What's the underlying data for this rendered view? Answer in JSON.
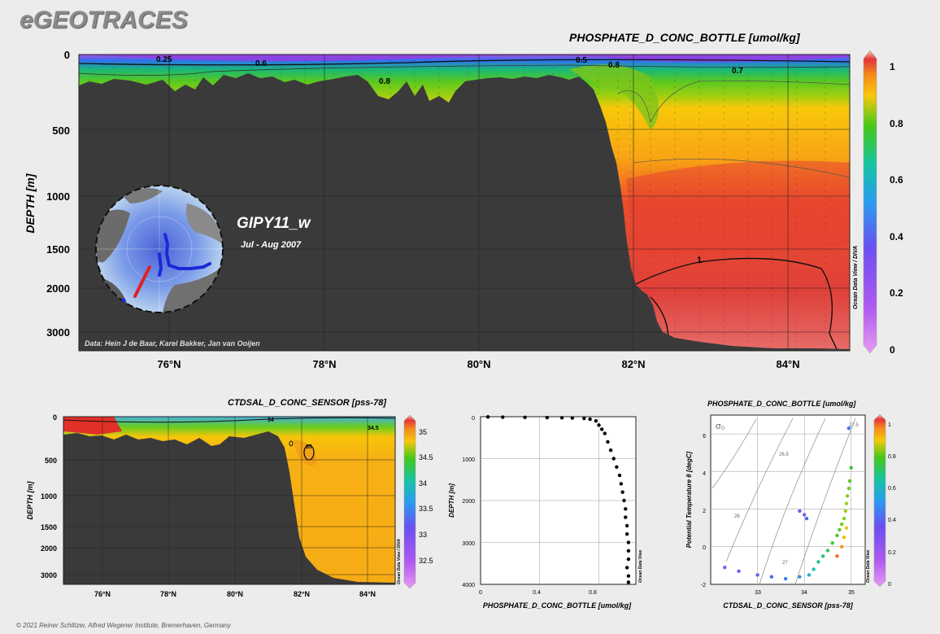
{
  "brand": "eGEOTRACES",
  "footer": "© 2021 Reiner Schlitzer, Alfred Wegener Institute, Bremerhaven, Germany",
  "colors": {
    "land": "#3a3a3a",
    "page_bg": "#ececec",
    "track_red": "#e02020",
    "track_blue": "#1a2ad6"
  },
  "chart_data": [
    {
      "type": "heatmap",
      "title": "PHOSPHATE_D_CONC_BOTTLE [umol/kg]",
      "ylabel": "DEPTH [m]",
      "y_ticks": [
        "0",
        "500",
        "1000",
        "1500",
        "2000",
        "3000"
      ],
      "x_ticks": [
        "76°N",
        "78°N",
        "80°N",
        "82°N",
        "84°N"
      ],
      "xlim": [
        74.8,
        84.8
      ],
      "ylim": [
        3400,
        0
      ],
      "colorbar_ticks": [
        "1",
        "0.8",
        "0.6",
        "0.4",
        "0.2",
        "0"
      ],
      "colorbar_range": [
        0,
        1.05
      ],
      "contour_labels": [
        "0.25",
        "0.6",
        "0.5",
        "0.8",
        "0.7",
        "0.8",
        "1"
      ],
      "cruise": "GIPY11_w",
      "period": "Jul - Aug 2007",
      "credit": "Data: Hein J de Baar, Karel Bakker, Jan van Ooijen",
      "side_label": "Ocean Data View / DIVA"
    },
    {
      "type": "heatmap",
      "title": "CTDSAL_D_CONC_SENSOR [pss-78]",
      "ylabel": "DEPTH [m]",
      "y_ticks": [
        "0",
        "500",
        "1000",
        "1500",
        "2000",
        "3000"
      ],
      "x_ticks": [
        "76°N",
        "78°N",
        "80°N",
        "82°N",
        "84°N"
      ],
      "xlim": [
        74.8,
        84.8
      ],
      "colorbar_ticks": [
        "35",
        "34.5",
        "34",
        "33.5",
        "33",
        "32.5"
      ],
      "colorbar_range": [
        32.2,
        35.3
      ],
      "contour_labels": [
        "34",
        "34.5",
        "35"
      ],
      "side_label": "Ocean Data View / DIVA"
    },
    {
      "type": "scatter",
      "xlabel": "PHOSPHATE_D_CONC_BOTTLE [umol/kg]",
      "ylabel": "DEPTH [m]",
      "xlim": [
        0,
        1.05
      ],
      "ylim": [
        4000,
        0
      ],
      "x_ticks": [
        "0",
        "0.4",
        "0.8"
      ],
      "y_ticks": [
        "0",
        "1000",
        "2000",
        "3000",
        "4000"
      ],
      "side_label": "Ocean Data View",
      "series": [
        {
          "x": [
            0.05,
            0.15,
            0.3,
            0.45,
            0.55,
            0.62,
            0.7,
            0.74,
            0.78,
            0.8,
            0.82,
            0.84,
            0.86,
            0.88,
            0.9,
            0.92,
            0.94,
            0.95,
            0.96,
            0.97,
            0.98,
            0.98,
            0.99,
            0.99,
            1.0,
            1.0,
            1.0,
            0.99,
            1.0,
            1.0
          ],
          "y": [
            5,
            10,
            15,
            20,
            25,
            30,
            40,
            60,
            100,
            200,
            300,
            400,
            600,
            800,
            1000,
            1200,
            1400,
            1600,
            1800,
            2000,
            2200,
            2400,
            2600,
            2800,
            3000,
            3200,
            3400,
            3600,
            3800,
            3950
          ]
        }
      ]
    },
    {
      "type": "scatter",
      "title": "PHOSPHATE_D_CONC_BOTTLE [umol/kg]",
      "xlabel": "CTDSAL_D_CONC_SENSOR [pss-78]",
      "ylabel": "Potential Temperature θ [degC]",
      "xlim": [
        32.0,
        35.3
      ],
      "ylim": [
        -2,
        7
      ],
      "x_ticks": [
        "33",
        "34",
        "35"
      ],
      "y_ticks": [
        "-2",
        "0",
        "2",
        "4",
        "6"
      ],
      "isopycnal_symbol": "σ₀",
      "isopycnal_labels": [
        "26",
        "26.5",
        "27",
        "27.5"
      ],
      "colorbar_ticks": [
        "1",
        "0.8",
        "0.6",
        "0.4",
        "0.2",
        "0"
      ],
      "colorbar_range": [
        0,
        1.05
      ],
      "side_label": "Ocean Data View",
      "series": [
        {
          "x": [
            32.3,
            32.6,
            33.0,
            33.3,
            33.6,
            33.9,
            34.1,
            34.2,
            34.3,
            34.4,
            34.5,
            34.6,
            34.7,
            34.75,
            34.8,
            34.85,
            34.88,
            34.9,
            34.92,
            34.95,
            34.97,
            35.0,
            34.9,
            34.85,
            34.8,
            34.7,
            34.0,
            33.9,
            34.05,
            34.95
          ],
          "y": [
            -1.1,
            -1.3,
            -1.5,
            -1.6,
            -1.7,
            -1.6,
            -1.5,
            -1.2,
            -0.8,
            -0.5,
            -0.2,
            0.2,
            0.6,
            0.9,
            1.2,
            1.5,
            1.9,
            2.3,
            2.7,
            3.1,
            3.5,
            4.2,
            1.0,
            0.5,
            0.0,
            -0.5,
            1.7,
            1.9,
            1.5,
            6.3
          ],
          "c": [
            0.25,
            0.3,
            0.35,
            0.4,
            0.45,
            0.5,
            0.55,
            0.6,
            0.62,
            0.65,
            0.68,
            0.7,
            0.72,
            0.74,
            0.76,
            0.78,
            0.8,
            0.8,
            0.78,
            0.76,
            0.74,
            0.7,
            0.88,
            0.92,
            0.96,
            1.0,
            0.3,
            0.35,
            0.4,
            0.45
          ]
        }
      ]
    }
  ]
}
